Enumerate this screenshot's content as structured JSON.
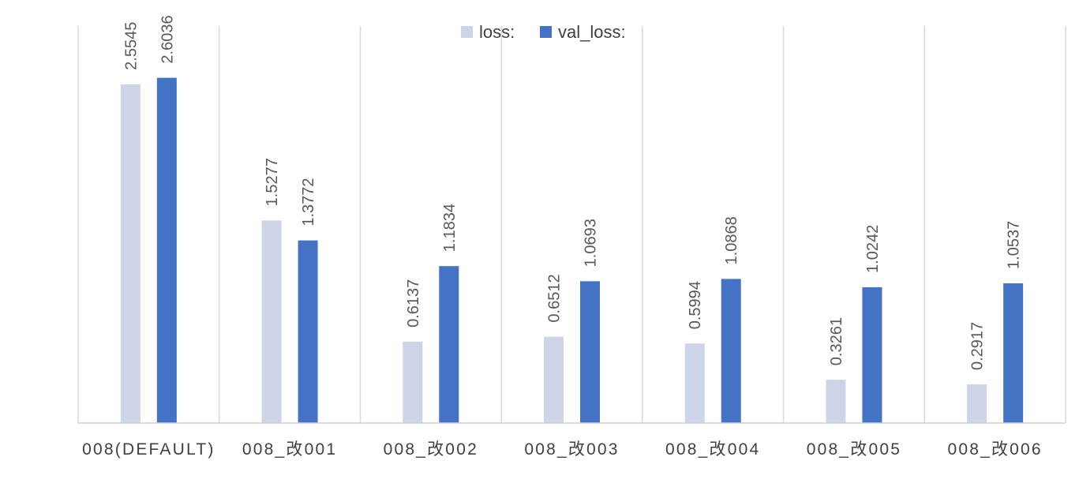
{
  "chart_data": {
    "type": "bar",
    "categories": [
      "008(DEFAULT)",
      "008_改001",
      "008_改002",
      "008_改003",
      "008_改004",
      "008_改005",
      "008_改006"
    ],
    "series": [
      {
        "name": "loss:",
        "color": "#cdd4e8",
        "values": [
          2.5545,
          1.5277,
          0.6137,
          0.6512,
          0.5994,
          0.3261,
          0.2917
        ],
        "labels": [
          "2.5545",
          "1.5277",
          "0.6137",
          "0.6512",
          "0.5994",
          "0.3261",
          "0.2917"
        ]
      },
      {
        "name": "val_loss:",
        "color": "#4472c4",
        "values": [
          2.6036,
          1.3772,
          1.1834,
          1.0693,
          1.0868,
          1.0242,
          1.0537
        ],
        "labels": [
          "2.6036",
          "1.3772",
          "1.1834",
          "1.0693",
          "1.0868",
          "1.0242",
          "1.0537"
        ]
      }
    ],
    "title": "",
    "xlabel": "",
    "ylabel": "",
    "ylim": [
      0,
      3
    ],
    "grid": "vertical category separators",
    "legend_position": "top-center",
    "data_labels": "rotated vertical, above bars"
  }
}
